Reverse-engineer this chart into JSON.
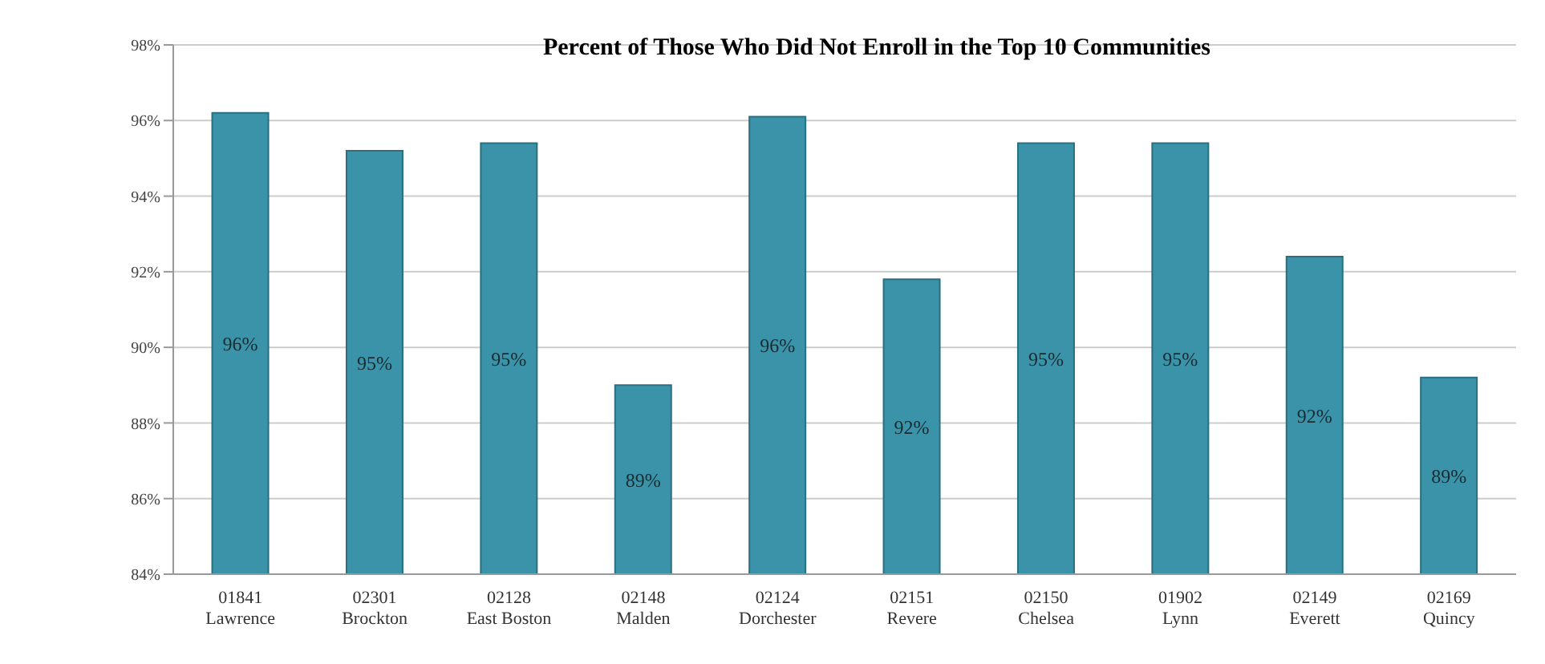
{
  "chart_data": {
    "type": "bar",
    "title": "Percent of Those Who Did Not Enroll in the Top 10 Communities",
    "categories": [
      "01841 Lawrence",
      "02301 Brockton",
      "02128 East Boston",
      "02148 Malden",
      "02124 Dorchester",
      "02151 Revere",
      "02150 Chelsea",
      "01902 Lynn",
      "02149 Everett",
      "02169 Quincy"
    ],
    "values": [
      96.2,
      95.2,
      95.4,
      89.0,
      96.1,
      91.8,
      95.4,
      95.4,
      92.4,
      89.2
    ],
    "value_labels": [
      "96%",
      "95%",
      "95%",
      "89%",
      "96%",
      "92%",
      "95%",
      "95%",
      "92%",
      "89%"
    ],
    "color": "#3a93a8",
    "ylim": [
      84,
      98
    ],
    "yticks": [
      {
        "value": 84,
        "label": "84%"
      },
      {
        "value": 86,
        "label": "86%"
      },
      {
        "value": 88,
        "label": "88%"
      },
      {
        "value": 90,
        "label": "90%"
      },
      {
        "value": 92,
        "label": "92%"
      },
      {
        "value": 94,
        "label": "94%"
      },
      {
        "value": 96,
        "label": "96%"
      },
      {
        "value": 98,
        "label": "98%"
      }
    ],
    "grid": "y"
  }
}
